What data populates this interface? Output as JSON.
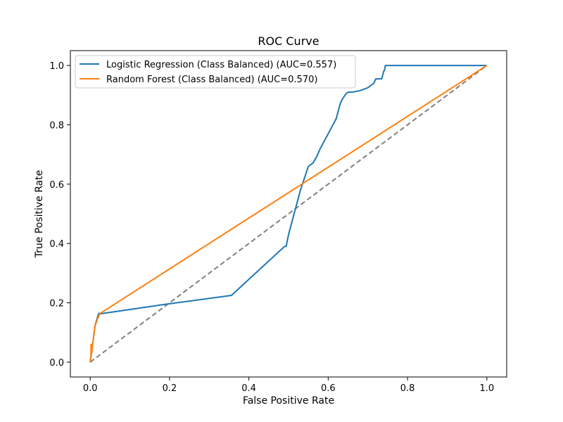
{
  "chart_data": {
    "type": "line",
    "title": "ROC Curve",
    "xlabel": "False Positive Rate",
    "ylabel": "True Positive Rate",
    "xlim": [
      -0.05,
      1.05
    ],
    "ylim": [
      -0.05,
      1.05
    ],
    "xticks": [
      "0.0",
      "0.2",
      "0.4",
      "0.6",
      "0.8",
      "1.0"
    ],
    "yticks": [
      "0.0",
      "0.2",
      "0.4",
      "0.6",
      "0.8",
      "1.0"
    ],
    "grid": false,
    "legend_position": "top-left",
    "series": [
      {
        "name": "Logistic Regression (Class Balanced) (AUC=0.557)",
        "color": "#1f77b4",
        "x": [
          0.0,
          0.002,
          0.004,
          0.006,
          0.008,
          0.01,
          0.012,
          0.014,
          0.016,
          0.018,
          0.022,
          0.026,
          0.19,
          0.356,
          0.49,
          0.494,
          0.5,
          0.51,
          0.52,
          0.53,
          0.54,
          0.55,
          0.56,
          0.562,
          0.57,
          0.58,
          0.59,
          0.6,
          0.61,
          0.62,
          0.625,
          0.63,
          0.635,
          0.64,
          0.645,
          0.65,
          0.655,
          0.66,
          0.68,
          0.7,
          0.71,
          0.715,
          0.72,
          0.725,
          0.73,
          0.735,
          0.738,
          0.74,
          0.742,
          0.744,
          0.75,
          0.8,
          0.9,
          1.0
        ],
        "y": [
          0.0,
          0.02,
          0.04,
          0.06,
          0.08,
          0.1,
          0.12,
          0.13,
          0.14,
          0.15,
          0.165,
          0.163,
          0.195,
          0.225,
          0.39,
          0.39,
          0.43,
          0.48,
          0.53,
          0.58,
          0.62,
          0.66,
          0.67,
          0.672,
          0.69,
          0.72,
          0.745,
          0.77,
          0.795,
          0.82,
          0.845,
          0.87,
          0.885,
          0.895,
          0.905,
          0.91,
          0.91,
          0.91,
          0.915,
          0.925,
          0.935,
          0.94,
          0.955,
          0.955,
          0.955,
          0.955,
          0.97,
          0.98,
          0.985,
          1.0,
          1.0,
          1.0,
          1.0,
          1.0
        ]
      },
      {
        "name": "Random Forest (Class Balanced) (AUC=0.570)",
        "color": "#ff7f0e",
        "x": [
          0.0,
          0.002,
          0.002,
          0.004,
          0.005,
          0.006,
          0.008,
          0.01,
          0.012,
          0.014,
          0.016,
          0.018,
          0.02,
          0.023,
          0.026,
          1.0
        ],
        "y": [
          0.0,
          0.02,
          0.06,
          0.03,
          0.045,
          0.06,
          0.08,
          0.1,
          0.12,
          0.135,
          0.135,
          0.145,
          0.15,
          0.16,
          0.165,
          1.0
        ]
      }
    ],
    "reference_line": {
      "x": [
        0.0,
        1.0
      ],
      "y": [
        0.0,
        1.0
      ],
      "color": "#808080",
      "style": "dashed"
    }
  }
}
